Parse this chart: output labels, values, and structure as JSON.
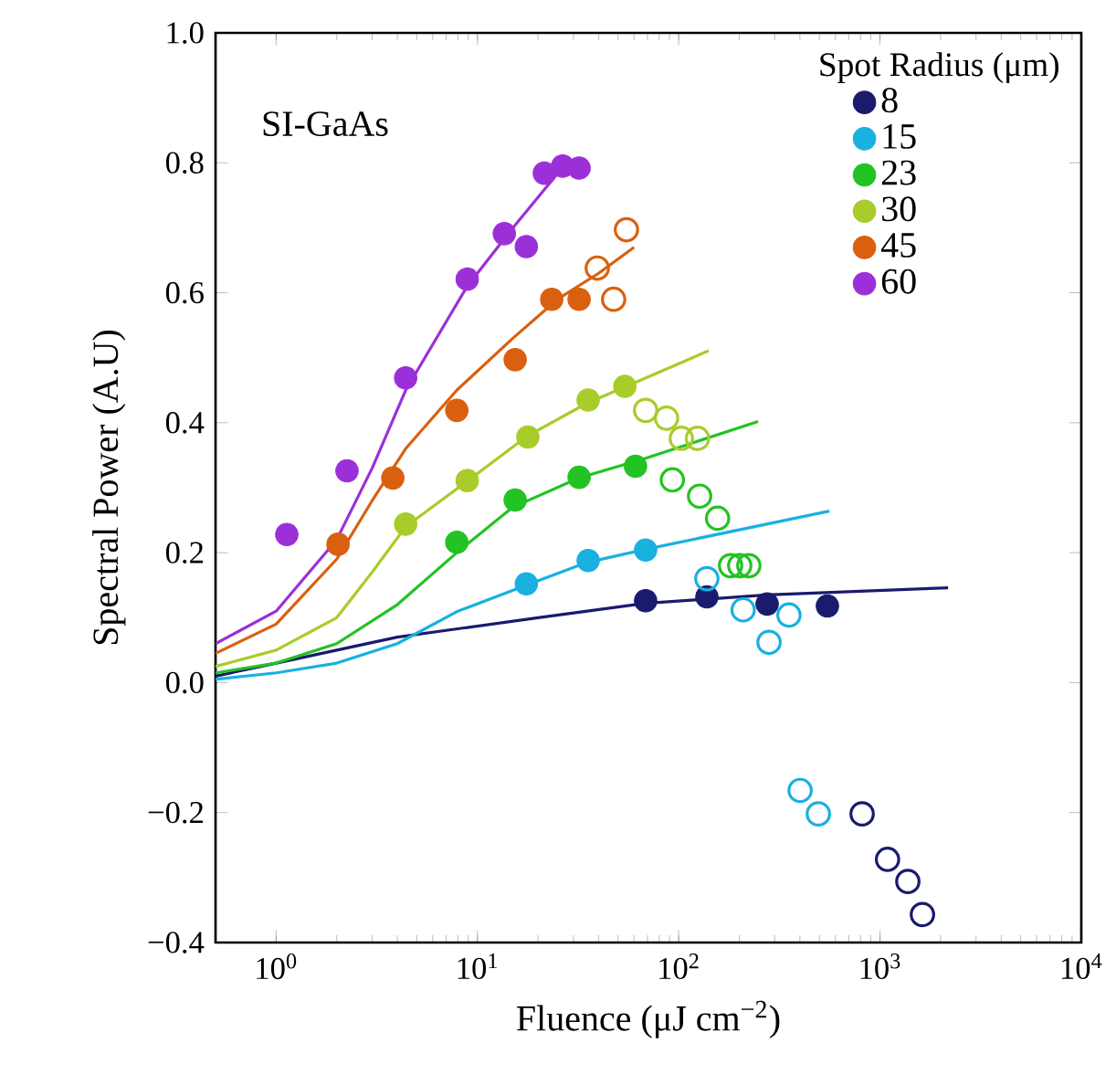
{
  "chart_data": {
    "type": "scatter",
    "xlabel": "Fluence (μJ cm$^{−2}$)",
    "ylabel": "Spectral Power (A.U)",
    "legend_title": "Spot Radius (μm)",
    "annotations": [
      "SI-GaAs"
    ],
    "log": "x",
    "legend": "top right",
    "marker": "circle",
    "xlim": [
      0.5,
      10000
    ],
    "ylim": [
      -0.4,
      1.0
    ],
    "xticks": [
      {
        "value": 1,
        "label": "10$^{0}$"
      },
      {
        "value": 10,
        "label": "10$^{1}$"
      },
      {
        "value": 100,
        "label": "10$^{2}$"
      },
      {
        "value": 1000,
        "label": "10$^{3}$"
      },
      {
        "value": 10000,
        "label": "10$^{4}$"
      }
    ],
    "yticks": [
      {
        "value": -0.4,
        "label": "−0.4"
      },
      {
        "value": -0.2,
        "label": "−0.2"
      },
      {
        "value": 0,
        "label": "0.0"
      },
      {
        "value": 0.2,
        "label": "0.2"
      },
      {
        "value": 0.4,
        "label": "0.4"
      },
      {
        "value": 0.6,
        "label": "0.6"
      },
      {
        "value": 0.8,
        "label": "0.8"
      },
      {
        "value": 1.0,
        "label": "1.0"
      }
    ],
    "series": [
      {
        "name": "8",
        "color": "#1a1a6e",
        "x": [
          68.5,
          138,
          275,
          548
        ],
        "values": [
          0.126,
          0.132,
          0.121,
          0.118
        ]
      },
      {
        "name": "15",
        "color": "#1ab0e0",
        "x": [
          17.5,
          35.5,
          68.5
        ],
        "values": [
          0.152,
          0.188,
          0.204
        ]
      },
      {
        "name": "23",
        "color": "#22c322",
        "x": [
          7.9,
          15.4,
          32,
          61
        ],
        "values": [
          0.216,
          0.281,
          0.316,
          0.333
        ]
      },
      {
        "name": "30",
        "color": "#a8cc2a",
        "x": [
          4.4,
          8.9,
          17.8,
          35.5,
          54
        ],
        "values": [
          0.244,
          0.311,
          0.378,
          0.435,
          0.456
        ]
      },
      {
        "name": "45",
        "color": "#d9600f",
        "x": [
          2.03,
          3.8,
          7.9,
          15.4,
          23.4,
          32
        ],
        "values": [
          0.213,
          0.315,
          0.419,
          0.497,
          0.59,
          0.59
        ]
      },
      {
        "name": "60",
        "color": "#9b30d9",
        "x": [
          1.13,
          2.25,
          4.4,
          8.9,
          13.6,
          17.5,
          21.5,
          26.5,
          32
        ],
        "values": [
          0.228,
          0.326,
          0.469,
          0.621,
          0.691,
          0.671,
          0.784,
          0.795,
          0.792
        ]
      },
      {
        "color": "#1a1a6e",
        "x": [
          815,
          1090,
          1375,
          1625
        ],
        "values": [
          -0.202,
          -0.272,
          -0.306,
          -0.357
        ]
      },
      {
        "color": "#1ab0e0",
        "x": [
          138,
          209,
          281,
          353,
          401,
          494
        ],
        "values": [
          0.16,
          0.112,
          0.062,
          0.104,
          -0.166,
          -0.202
        ]
      },
      {
        "color": "#22c322",
        "x": [
          93,
          127,
          156,
          181,
          201,
          223
        ],
        "values": [
          0.312,
          0.287,
          0.253,
          0.18,
          0.18,
          0.18
        ]
      },
      {
        "color": "#a8cc2a",
        "x": [
          68.5,
          87,
          103,
          124
        ],
        "values": [
          0.419,
          0.407,
          0.376,
          0.376
        ]
      },
      {
        "color": "#d9600f",
        "x": [
          39.4,
          47.5,
          55
        ],
        "values": [
          0.638,
          0.59,
          0.697
        ]
      },
      {
        "type": "line",
        "marker": "none",
        "color": "#1a1a6e",
        "x": [
          0.5,
          1,
          4,
          20,
          68,
          275,
          2180
        ],
        "values": [
          0.01,
          0.03,
          0.07,
          0.1,
          0.122,
          0.135,
          0.146
        ]
      },
      {
        "type": "line",
        "marker": "none",
        "color": "#1ab0e0",
        "x": [
          0.5,
          1,
          2,
          4,
          8,
          17.5,
          35,
          68,
          560
        ],
        "values": [
          0.005,
          0.015,
          0.03,
          0.06,
          0.11,
          0.15,
          0.185,
          0.205,
          0.264
        ]
      },
      {
        "type": "line",
        "marker": "none",
        "color": "#22c322",
        "x": [
          0.5,
          1,
          2,
          4,
          7.9,
          15,
          32,
          68,
          248
        ],
        "values": [
          0.015,
          0.03,
          0.06,
          0.12,
          0.2,
          0.27,
          0.315,
          0.345,
          0.402
        ]
      },
      {
        "type": "line",
        "marker": "none",
        "color": "#a8cc2a",
        "x": [
          0.5,
          1,
          2,
          3,
          4.4,
          8.9,
          17.8,
          35,
          70,
          141
        ],
        "values": [
          0.025,
          0.05,
          0.1,
          0.17,
          0.24,
          0.31,
          0.38,
          0.43,
          0.47,
          0.511
        ]
      },
      {
        "type": "line",
        "marker": "none",
        "color": "#d9600f",
        "x": [
          0.5,
          1,
          2,
          3,
          4.4,
          7.9,
          15,
          25,
          40,
          60
        ],
        "values": [
          0.045,
          0.09,
          0.19,
          0.28,
          0.36,
          0.45,
          0.53,
          0.59,
          0.63,
          0.67
        ]
      },
      {
        "type": "line",
        "marker": "none",
        "color": "#9b30d9",
        "x": [
          0.5,
          1,
          2,
          3,
          4.4,
          8.9,
          15,
          26,
          32
        ],
        "values": [
          0.06,
          0.11,
          0.22,
          0.33,
          0.45,
          0.61,
          0.7,
          0.79,
          0.8
        ]
      }
    ]
  }
}
